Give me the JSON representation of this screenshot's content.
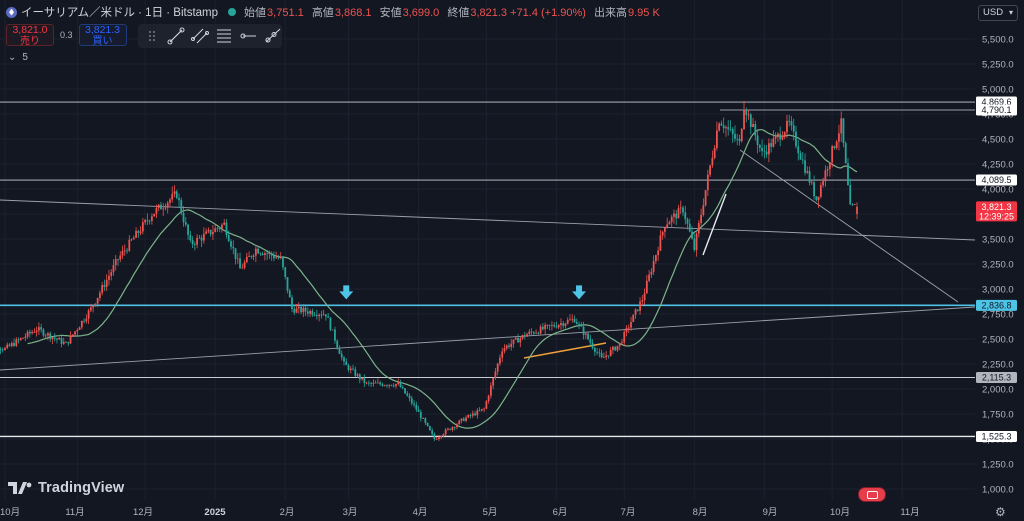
{
  "header": {
    "symbol": "イーサリアム／米ドル · 1日 · Bitstamp",
    "ohlc": [
      {
        "key": "始値",
        "value": "3,751.1"
      },
      {
        "key": "高値",
        "value": "3,868.1"
      },
      {
        "key": "安値",
        "value": "3,699.0"
      },
      {
        "key": "終値",
        "value": "3,821.3 +71.4 (+1.90%)"
      },
      {
        "key": "出来高",
        "value": "9.95 K"
      }
    ]
  },
  "trade": {
    "sell_price": "3,821.0",
    "sell_label": "売り",
    "spread": "0.3",
    "buy_price": "3,821.3",
    "buy_label": "買い"
  },
  "indicators_toggle": "5",
  "currency": "USD",
  "brand": "TradingView",
  "colors": {
    "background": "#131722",
    "up": "#ef5350",
    "down": "#26a69a",
    "ma": "#7cb48a",
    "cyan": "#4dc3e6"
  },
  "chart_data": {
    "type": "candlestick",
    "title": "",
    "y_ticks": [
      "5,500.0",
      "5,250.0",
      "5,000.0",
      "4,750.0",
      "4,500.0",
      "4,250.0",
      "4,000.0",
      "3,750.0",
      "3,500.0",
      "3,250.0",
      "3,000.0",
      "2,750.0",
      "2,500.0",
      "2,250.0",
      "2,000.0",
      "1,750.0",
      "1,500.0",
      "1,250.0",
      "1,000.0"
    ],
    "x_ticks": [
      "10月",
      "11月",
      "12月",
      "2025",
      "2月",
      "3月",
      "4月",
      "5月",
      "6月",
      "7月",
      "8月",
      "9月",
      "10月",
      "11月"
    ],
    "ylim": [
      1000,
      5500
    ],
    "price_labels": [
      {
        "text": "4,869.6",
        "value": 4869.6,
        "style": "white"
      },
      {
        "text": "4,790.1",
        "value": 4790.1,
        "style": "white"
      },
      {
        "text": "4,089.5",
        "value": 4089.5,
        "style": "white"
      },
      {
        "text": "3,821.3",
        "value": 3821.3,
        "style": "red",
        "countdown": "12:39:25"
      },
      {
        "text": "2,836.8",
        "value": 2836.8,
        "style": "cyan"
      },
      {
        "text": "2,115.3",
        "value": 2115.3,
        "style": "gray"
      },
      {
        "text": "1,525.3",
        "value": 1525.3,
        "style": "white"
      }
    ],
    "series_anchors": [
      {
        "x": "2024-09-20",
        "y": 2500
      },
      {
        "x": "2024-10-01",
        "y": 2400
      },
      {
        "x": "2024-10-15",
        "y": 2600
      },
      {
        "x": "2024-10-28",
        "y": 2450
      },
      {
        "x": "2024-11-08",
        "y": 2800
      },
      {
        "x": "2024-11-20",
        "y": 3300
      },
      {
        "x": "2024-12-05",
        "y": 3750
      },
      {
        "x": "2024-12-16",
        "y": 3950
      },
      {
        "x": "2024-12-22",
        "y": 3450
      },
      {
        "x": "2025-01-06",
        "y": 3650
      },
      {
        "x": "2025-01-13",
        "y": 3200
      },
      {
        "x": "2025-01-20",
        "y": 3400
      },
      {
        "x": "2025-01-31",
        "y": 3300
      },
      {
        "x": "2025-02-05",
        "y": 2800
      },
      {
        "x": "2025-02-20",
        "y": 2750
      },
      {
        "x": "2025-02-28",
        "y": 2250
      },
      {
        "x": "2025-03-10",
        "y": 2050
      },
      {
        "x": "2025-03-24",
        "y": 2050
      },
      {
        "x": "2025-04-01",
        "y": 1800
      },
      {
        "x": "2025-04-09",
        "y": 1500
      },
      {
        "x": "2025-04-22",
        "y": 1700
      },
      {
        "x": "2025-05-01",
        "y": 1800
      },
      {
        "x": "2025-05-09",
        "y": 2400
      },
      {
        "x": "2025-05-20",
        "y": 2550
      },
      {
        "x": "2025-06-10",
        "y": 2700
      },
      {
        "x": "2025-06-22",
        "y": 2300
      },
      {
        "x": "2025-06-30",
        "y": 2450
      },
      {
        "x": "2025-07-10",
        "y": 2900
      },
      {
        "x": "2025-07-20",
        "y": 3650
      },
      {
        "x": "2025-07-28",
        "y": 3800
      },
      {
        "x": "2025-08-02",
        "y": 3400
      },
      {
        "x": "2025-08-13",
        "y": 4700
      },
      {
        "x": "2025-08-22",
        "y": 4450
      },
      {
        "x": "2025-08-24",
        "y": 4850
      },
      {
        "x": "2025-09-01",
        "y": 4350
      },
      {
        "x": "2025-09-13",
        "y": 4650
      },
      {
        "x": "2025-09-25",
        "y": 3900
      },
      {
        "x": "2025-10-06",
        "y": 4650
      },
      {
        "x": "2025-10-10",
        "y": 3800
      },
      {
        "x": "2025-10-12",
        "y": 3821.3
      }
    ]
  }
}
